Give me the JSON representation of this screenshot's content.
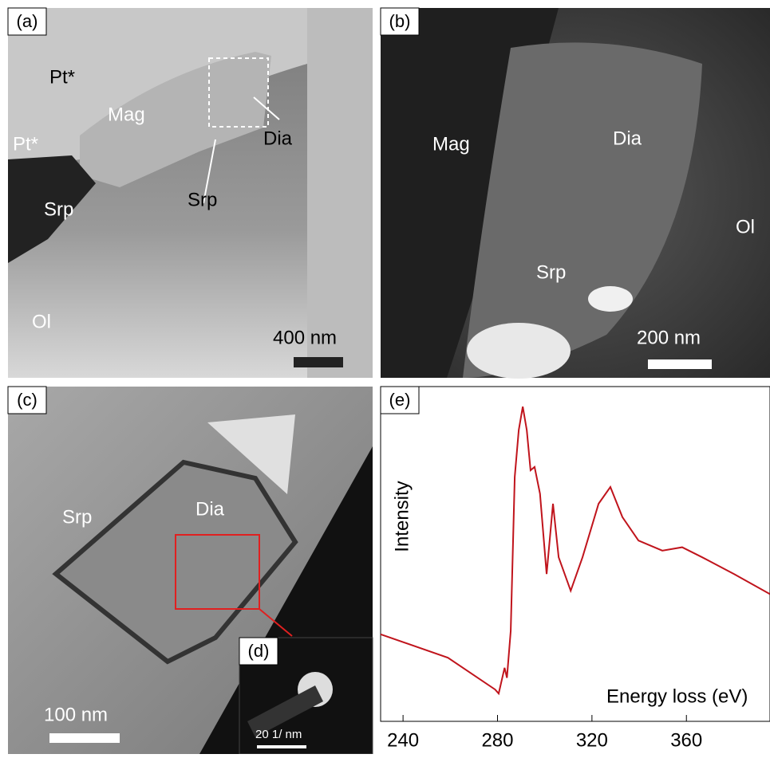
{
  "panels": {
    "a": {
      "tag": "(a)",
      "labels": [
        "Pt*",
        "Mag",
        "Pt*",
        "Dia",
        "Srp",
        "Srp",
        "Ol"
      ],
      "scale_bar": "400 nm"
    },
    "b": {
      "tag": "(b)",
      "labels": [
        "Mag",
        "Dia",
        "Ol",
        "Srp"
      ],
      "scale_bar": "200 nm"
    },
    "c": {
      "tag": "(c)",
      "labels": [
        "Srp",
        "Dia"
      ],
      "scale_bar": "100 nm"
    },
    "d": {
      "tag": "(d)",
      "scale_bar": "20 1/ nm"
    }
  },
  "chart_data": {
    "type": "line",
    "tag": "(e)",
    "y_label": "Intensity",
    "x_label": "Energy loss (eV)",
    "x": [
      230.5,
      259,
      279,
      280.5,
      283,
      284,
      285.6,
      287.3,
      289,
      290.7,
      292.4,
      294,
      295.7,
      298,
      300.8,
      303.5,
      305.9,
      311,
      316,
      322.8,
      327.8,
      332.9,
      339.7,
      349.8,
      358.2,
      366.7,
      380.2,
      395.4
    ],
    "series": [
      {
        "color": "#c0141c",
        "values": [
          0.26,
          0.19,
          0.095,
          0.083,
          0.16,
          0.13,
          0.27,
          0.73,
          0.87,
          0.94,
          0.87,
          0.75,
          0.76,
          0.68,
          0.44,
          0.65,
          0.49,
          0.39,
          0.49,
          0.65,
          0.7,
          0.61,
          0.54,
          0.51,
          0.52,
          0.49,
          0.44,
          0.38
        ]
      }
    ],
    "xlim": [
      230.5,
      395.4
    ],
    "xticks": [
      240,
      280,
      320,
      360
    ],
    "ylim": [
      0,
      1
    ]
  }
}
